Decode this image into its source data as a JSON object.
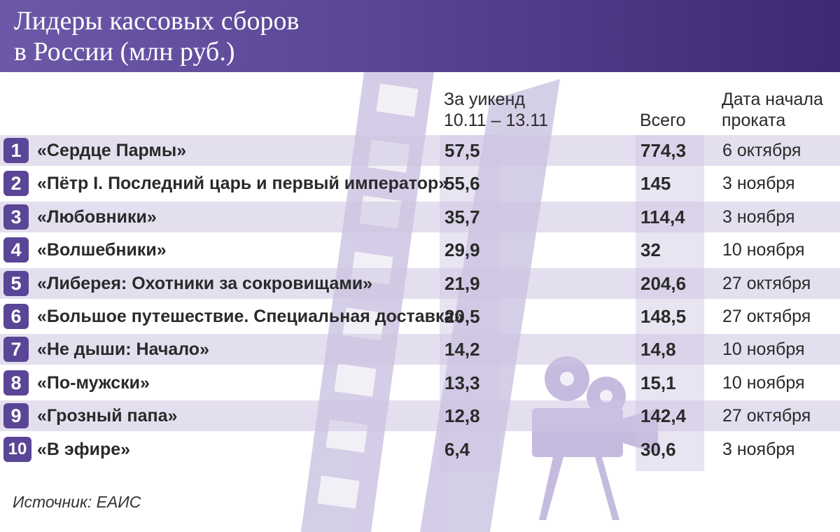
{
  "title_line1": "Лидеры кассовых сборов",
  "title_line2": "в России (млн руб.)",
  "columns": {
    "weekend_line1": "За уикенд",
    "weekend_line2": "10.11 – 13.11",
    "total": "Всего",
    "date_line1": "Дата начала",
    "date_line2": "проката"
  },
  "source": "Источник: ЕАИС",
  "colors": {
    "header": "#5a4596",
    "row_alt": "#cdc4e2",
    "badge": "#5a4596"
  },
  "chart_data": {
    "type": "table",
    "title": "Лидеры кассовых сборов в России (млн руб.)",
    "columns": [
      "За уикенд 10.11 – 13.11",
      "Всего",
      "Дата начала проката"
    ],
    "rows": [
      {
        "rank": "1",
        "film": "«Сердце Пармы»",
        "weekend": "57,5",
        "total": "774,3",
        "date": "6 октября"
      },
      {
        "rank": "2",
        "film": "«Пётр I. Последний царь и первый император»",
        "weekend": "55,6",
        "total": "145",
        "date": "3 ноября"
      },
      {
        "rank": "3",
        "film": "«Любовники»",
        "weekend": "35,7",
        "total": "114,4",
        "date": "3 ноября"
      },
      {
        "rank": "4",
        "film": "«Волшебники»",
        "weekend": "29,9",
        "total": "32",
        "date": "10 ноября"
      },
      {
        "rank": "5",
        "film": "«Либерея: Охотники за сокровищами»",
        "weekend": "21,9",
        "total": "204,6",
        "date": "27 октября"
      },
      {
        "rank": "6",
        "film": "«Большое путешествие. Специальная доставка»",
        "weekend": "20,5",
        "total": "148,5",
        "date": "27 октября"
      },
      {
        "rank": "7",
        "film": "«Не дыши: Начало»",
        "weekend": "14,2",
        "total": "14,8",
        "date": "10 ноября"
      },
      {
        "rank": "8",
        "film": "«По-мужски»",
        "weekend": "13,3",
        "total": "15,1",
        "date": "10 ноября"
      },
      {
        "rank": "9",
        "film": "«Грозный папа»",
        "weekend": "12,8",
        "total": "142,4",
        "date": "27 октября"
      },
      {
        "rank": "10",
        "film": "«В эфире»",
        "weekend": "6,4",
        "total": "30,6",
        "date": "3 ноября"
      }
    ]
  }
}
